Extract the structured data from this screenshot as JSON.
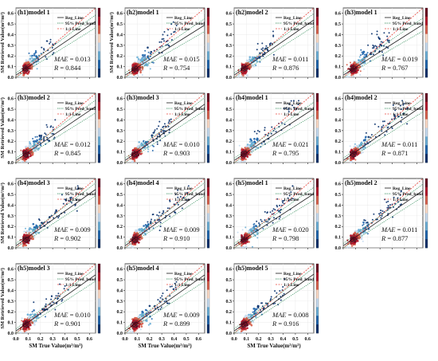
{
  "figure": {
    "shared": {
      "xlabel": "SM True Value(m³/m³)",
      "ylabel": "SM Retrieved Value(m³/m³)",
      "legend": [
        "Reg_Line",
        "95% Pred_band",
        "1:1 Line"
      ],
      "legend_placement": "top-left",
      "colors": {
        "reg_line": "#1a1a1a",
        "pred_band": "#2e8b57",
        "one_to_one": "#e8453c"
      },
      "colormap": [
        "#08306b",
        "#2166ac",
        "#6baed6",
        "#c6dbef",
        "#fddbc7",
        "#d6604d",
        "#b2182b",
        "#67001f"
      ]
    }
  },
  "chart_data": [
    {
      "type": "scatter",
      "title": "(h1)model 1",
      "ylabel": "SM Retrieved Value(m³/m³)",
      "xlabel": "",
      "x_ticks": [],
      "y_ticks": [
        "0.0",
        "0.1",
        "0.2",
        "0.3",
        "0.4",
        "0.5",
        "0.6"
      ],
      "xlim": [
        0,
        0.65
      ],
      "ylim": [
        0,
        0.65
      ],
      "mae_label": "MAE",
      "mae": "0.013",
      "r_label": "R",
      "r": "0.844",
      "colorbar": true,
      "x_spread": 0.3,
      "y_spread": 0.45,
      "noise": 0.3
    },
    {
      "type": "scatter",
      "title": "(h2)model 1",
      "ylabel": "SM Retrieved Value(m³/m³)",
      "xlabel": "",
      "x_ticks": [],
      "y_ticks": [
        "0.0",
        "0.1",
        "0.2",
        "0.3",
        "0.4",
        "0.5",
        "0.6"
      ],
      "xlim": [
        0,
        0.65
      ],
      "ylim": [
        0,
        0.65
      ],
      "mae_label": "MAE",
      "mae": "0.015",
      "r_label": "R",
      "r": "0.754",
      "colorbar": true,
      "x_spread": 0.4,
      "y_spread": 0.45,
      "noise": 0.35
    },
    {
      "type": "scatter",
      "title": "(h2)model 2",
      "ylabel": "",
      "xlabel": "",
      "x_ticks": [],
      "y_ticks": [
        "0.0",
        "0.1",
        "0.2",
        "0.3",
        "0.4",
        "0.5",
        "0.6"
      ],
      "xlim": [
        0,
        0.65
      ],
      "ylim": [
        0,
        0.65
      ],
      "mae_label": "MAE",
      "mae": "0.011",
      "r_label": "R",
      "r": "0.876",
      "colorbar": true,
      "x_spread": 0.3,
      "y_spread": 0.35,
      "noise": 0.25
    },
    {
      "type": "scatter",
      "title": "(h3)model 1",
      "ylabel": "",
      "xlabel": "",
      "x_ticks": [],
      "y_ticks": [
        "0.0",
        "0.1",
        "0.2",
        "0.3",
        "0.4",
        "0.5",
        "0.6"
      ],
      "xlim": [
        0,
        0.65
      ],
      "ylim": [
        0,
        0.65
      ],
      "mae_label": "MAE",
      "mae": "0.019",
      "r_label": "R",
      "r": "0.767",
      "colorbar": true,
      "x_spread": 0.35,
      "y_spread": 0.35,
      "noise": 0.35
    },
    {
      "type": "scatter",
      "title": "(h3)model 2",
      "ylabel": "SM Retrieved Value(m³/m³)",
      "xlabel": "",
      "x_ticks": [],
      "y_ticks": [
        "0.0",
        "0.1",
        "0.2",
        "0.3",
        "0.4",
        "0.5",
        "0.6"
      ],
      "xlim": [
        0,
        0.65
      ],
      "ylim": [
        0,
        0.65
      ],
      "mae_label": "MAE",
      "mae": "0.012",
      "r_label": "R",
      "r": "0.845",
      "colorbar": true,
      "x_spread": 0.3,
      "y_spread": 0.35,
      "noise": 0.3
    },
    {
      "type": "scatter",
      "title": "(h3)model 3",
      "ylabel": "",
      "xlabel": "",
      "x_ticks": [],
      "y_ticks": [
        "0.0",
        "0.1",
        "0.2",
        "0.3",
        "0.4",
        "0.5",
        "0.6"
      ],
      "xlim": [
        0,
        0.65
      ],
      "ylim": [
        0,
        0.65
      ],
      "mae_label": "MAE",
      "mae": "0.010",
      "r_label": "R",
      "r": "0.903",
      "colorbar": true,
      "x_spread": 0.35,
      "y_spread": 0.4,
      "noise": 0.2
    },
    {
      "type": "scatter",
      "title": "(h4)model 1",
      "ylabel": "",
      "xlabel": "",
      "x_ticks": [],
      "y_ticks": [
        "0.0",
        "0.1",
        "0.2",
        "0.3",
        "0.4",
        "0.5",
        "0.6"
      ],
      "xlim": [
        0,
        0.65
      ],
      "ylim": [
        0,
        0.65
      ],
      "mae_label": "MAE",
      "mae": "0.021",
      "r_label": "R",
      "r": "0.795",
      "colorbar": true,
      "x_spread": 0.5,
      "y_spread": 0.5,
      "noise": 0.35
    },
    {
      "type": "scatter",
      "title": "(h4)model 2",
      "ylabel": "",
      "xlabel": "",
      "x_ticks": [],
      "y_ticks": [
        "0.0",
        "0.1",
        "0.2",
        "0.3",
        "0.4",
        "0.5",
        "0.6"
      ],
      "xlim": [
        0,
        0.65
      ],
      "ylim": [
        0,
        0.65
      ],
      "mae_label": "MAE",
      "mae": "0.011",
      "r_label": "R",
      "r": "0.871",
      "colorbar": true,
      "x_spread": 0.5,
      "y_spread": 0.5,
      "noise": 0.25
    },
    {
      "type": "scatter",
      "title": "(h4)model 3",
      "ylabel": "SM Retrieved Value(m³/m³)",
      "xlabel": "",
      "x_ticks": [],
      "y_ticks": [
        "0.0",
        "0.1",
        "0.2",
        "0.3",
        "0.4",
        "0.5",
        "0.6"
      ],
      "xlim": [
        0,
        0.65
      ],
      "ylim": [
        0,
        0.65
      ],
      "mae_label": "MAE",
      "mae": "0.009",
      "r_label": "R",
      "r": "0.902",
      "colorbar": true,
      "x_spread": 0.5,
      "y_spread": 0.5,
      "noise": 0.2
    },
    {
      "type": "scatter",
      "title": "(h4)model 4",
      "ylabel": "",
      "xlabel": "",
      "x_ticks": [],
      "y_ticks": [
        "0.0",
        "0.1",
        "0.2",
        "0.3",
        "0.4",
        "0.5",
        "0.6"
      ],
      "xlim": [
        0,
        0.65
      ],
      "ylim": [
        0,
        0.65
      ],
      "mae_label": "MAE",
      "mae": "0.009",
      "r_label": "R",
      "r": "0.910",
      "colorbar": true,
      "x_spread": 0.5,
      "y_spread": 0.5,
      "noise": 0.2
    },
    {
      "type": "scatter",
      "title": "(h5)model 1",
      "ylabel": "",
      "xlabel": "",
      "x_ticks": [],
      "y_ticks": [
        "0.0",
        "0.1",
        "0.2",
        "0.3",
        "0.4",
        "0.5",
        "0.6"
      ],
      "xlim": [
        0,
        0.65
      ],
      "ylim": [
        0,
        0.65
      ],
      "mae_label": "MAE",
      "mae": "0.020",
      "r_label": "R",
      "r": "0.798",
      "colorbar": true,
      "x_spread": 0.45,
      "y_spread": 0.5,
      "noise": 0.35
    },
    {
      "type": "scatter",
      "title": "(h5)model 2",
      "ylabel": "",
      "xlabel": "",
      "x_ticks": [],
      "y_ticks": [
        "0.0",
        "0.1",
        "0.2",
        "0.3",
        "0.4",
        "0.5",
        "0.6"
      ],
      "xlim": [
        0,
        0.65
      ],
      "ylim": [
        0,
        0.65
      ],
      "mae_label": "MAE",
      "mae": "0.011",
      "r_label": "R",
      "r": "0.877",
      "colorbar": true,
      "x_spread": 0.45,
      "y_spread": 0.5,
      "noise": 0.25
    },
    {
      "type": "scatter",
      "title": "(h5)model 3",
      "ylabel": "SM Retrieved Value(m³/m³)",
      "xlabel": "SM True Value(m³/m³)",
      "x_ticks": [
        "0.0",
        "0.1",
        "0.2",
        "0.3",
        "0.4",
        "0.5",
        "0.6"
      ],
      "y_ticks": [
        "0.0",
        "0.1",
        "0.2",
        "0.3",
        "0.4",
        "0.5",
        "0.6"
      ],
      "xlim": [
        0,
        0.65
      ],
      "ylim": [
        0,
        0.65
      ],
      "mae_label": "MAE",
      "mae": "0.010",
      "r_label": "R",
      "r": "0.901",
      "colorbar": true,
      "x_spread": 0.4,
      "y_spread": 0.4,
      "noise": 0.2
    },
    {
      "type": "scatter",
      "title": "(h5)model 4",
      "ylabel": "",
      "xlabel": "SM True Value(m³/m³)",
      "x_ticks": [
        "0.0",
        "0.1",
        "0.2",
        "0.3",
        "0.4",
        "0.5",
        "0.6"
      ],
      "y_ticks": [
        "0.0",
        "0.1",
        "0.2",
        "0.3",
        "0.4",
        "0.5",
        "0.6"
      ],
      "xlim": [
        0,
        0.65
      ],
      "ylim": [
        0,
        0.65
      ],
      "mae_label": "MAE",
      "mae": "0.009",
      "r_label": "R",
      "r": "0.899",
      "colorbar": true,
      "x_spread": 0.4,
      "y_spread": 0.4,
      "noise": 0.2
    },
    {
      "type": "scatter",
      "title": "(h5)model 5",
      "ylabel": "",
      "xlabel": "SM True Value(m³/m³)",
      "x_ticks": [
        "0.0",
        "0.1",
        "0.2",
        "0.3",
        "0.4",
        "0.5",
        "0.6"
      ],
      "y_ticks": [
        "0.0",
        "0.1",
        "0.2",
        "0.3",
        "0.4",
        "0.5",
        "0.6"
      ],
      "xlim": [
        0,
        0.65
      ],
      "ylim": [
        0,
        0.65
      ],
      "mae_label": "MAE",
      "mae": "0.008",
      "r_label": "R",
      "r": "0.916",
      "colorbar": true,
      "x_spread": 0.4,
      "y_spread": 0.5,
      "noise": 0.15
    }
  ]
}
